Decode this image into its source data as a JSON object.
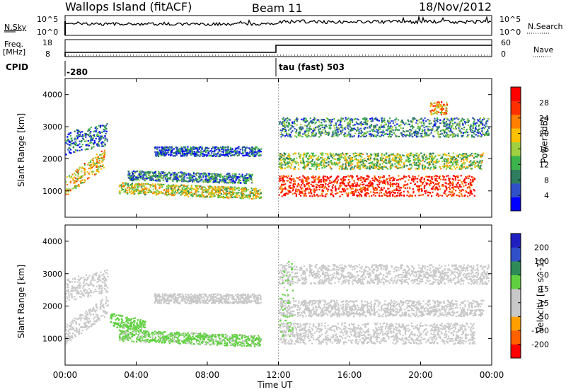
{
  "header": {
    "station": "Wallops Island (fitACF)",
    "beam": "Beam 11",
    "date": "18/Nov/2012"
  },
  "top_panels": {
    "nsky_label": "N.Sky",
    "nsky_ticks": [
      "10^5",
      "10^0"
    ],
    "nsearch_label": "N.Search",
    "nsearch_ticks": [
      "10^5",
      "10^0"
    ],
    "freq_label_1": "Freq.",
    "freq_label_2": "[MHz]",
    "freq_ticks": [
      "18",
      "8"
    ],
    "nave_label": "Nave",
    "nave_ticks": [
      "60",
      "0"
    ],
    "cpid_label": "CPID",
    "cpid_1": "-280",
    "cpid_2": "tau (fast) 503"
  },
  "chart_data": [
    {
      "type": "heatmap",
      "name": "power",
      "ylabel": "Slant Range [km]",
      "xlabel": "",
      "xlim": [
        0,
        24
      ],
      "ylim": [
        180,
        4500
      ],
      "yticks": [
        1000,
        2000,
        3000,
        4000
      ],
      "colorbar_label": "Power [dB]",
      "colorbar_ticks": [
        "28",
        "24",
        "20",
        "16",
        "12",
        "8",
        "4"
      ],
      "colorbar_range": [
        0,
        30
      ],
      "colors": [
        "#0000ff",
        "#3050c8",
        "#2e7d5e",
        "#3cb44b",
        "#a0d040",
        "#ffc000",
        "#ff8000",
        "#ff3000",
        "#ff0000"
      ],
      "regions": [
        {
          "t0": 0.0,
          "t1": 2.2,
          "r0": 1300,
          "r1": 1900,
          "value": 18,
          "slope": 900
        },
        {
          "t0": 0.0,
          "t1": 2.4,
          "r0": 2300,
          "r1": 3000,
          "value": 7,
          "slope": 300
        },
        {
          "t0": 3.0,
          "t1": 11.0,
          "r0": 850,
          "r1": 1200,
          "value": 16,
          "slope": -180
        },
        {
          "t0": 3.5,
          "t1": 10.5,
          "r0": 1300,
          "r1": 1600,
          "value": 8,
          "slope": -100
        },
        {
          "t0": 5.0,
          "t1": 11.0,
          "r0": 2100,
          "r1": 2400,
          "value": 6,
          "slope": 0
        },
        {
          "t0": 12.0,
          "t1": 23.0,
          "r0": 850,
          "r1": 1500,
          "value": 27,
          "slope": 0
        },
        {
          "t0": 12.0,
          "t1": 23.5,
          "r0": 1700,
          "r1": 2200,
          "value": 14,
          "slope": 0
        },
        {
          "t0": 12.0,
          "t1": 23.8,
          "r0": 2700,
          "r1": 3300,
          "value": 9,
          "slope": 0
        },
        {
          "t0": 20.5,
          "t1": 21.5,
          "r0": 3400,
          "r1": 3800,
          "value": 20,
          "slope": 0
        }
      ]
    },
    {
      "type": "heatmap",
      "name": "velocity",
      "ylabel": "Slant Range [km]",
      "xlabel": "Time UT",
      "xlim": [
        0,
        24
      ],
      "ylim": [
        180,
        4500
      ],
      "yticks": [
        1000,
        2000,
        3000,
        4000
      ],
      "xticks": [
        "00:00",
        "04:00",
        "08:00",
        "12:00",
        "16:00",
        "20:00",
        "00:00"
      ],
      "colorbar_label": "Velocity [m s^-1]",
      "colorbar_ticks": [
        "200",
        "100",
        "50",
        "15",
        "-15",
        "-50",
        "-100",
        "-200"
      ],
      "colorbar_range": [
        -250,
        250
      ],
      "colors": [
        "#ff0000",
        "#ff6000",
        "#ffa000",
        "#c8c8c8",
        "#c8c8c8",
        "#60d040",
        "#2e8b57",
        "#3050c8",
        "#2020c0"
      ],
      "regions": [
        {
          "t0": 0.0,
          "t1": 2.4,
          "r0": 1300,
          "r1": 1900,
          "value": 0,
          "slope": 900
        },
        {
          "t0": 0.0,
          "t1": 2.4,
          "r0": 2300,
          "r1": 3000,
          "value": 0,
          "slope": 300
        },
        {
          "t0": 3.0,
          "t1": 11.0,
          "r0": 850,
          "r1": 1200,
          "value": 40,
          "slope": -180
        },
        {
          "t0": 2.5,
          "t1": 4.5,
          "r0": 1300,
          "r1": 1700,
          "value": 45,
          "slope": -200
        },
        {
          "t0": 5.0,
          "t1": 11.0,
          "r0": 2100,
          "r1": 2400,
          "value": 0,
          "slope": 0
        },
        {
          "t0": 12.0,
          "t1": 23.0,
          "r0": 850,
          "r1": 1500,
          "value": 0,
          "slope": 0
        },
        {
          "t0": 12.0,
          "t1": 23.5,
          "r0": 1700,
          "r1": 2200,
          "value": 0,
          "slope": 0
        },
        {
          "t0": 12.0,
          "t1": 23.8,
          "r0": 2700,
          "r1": 3300,
          "value": 0,
          "slope": 0
        },
        {
          "t0": 12.0,
          "t1": 12.8,
          "r0": 1000,
          "r1": 3400,
          "value": 35,
          "slope": 0
        }
      ]
    }
  ]
}
